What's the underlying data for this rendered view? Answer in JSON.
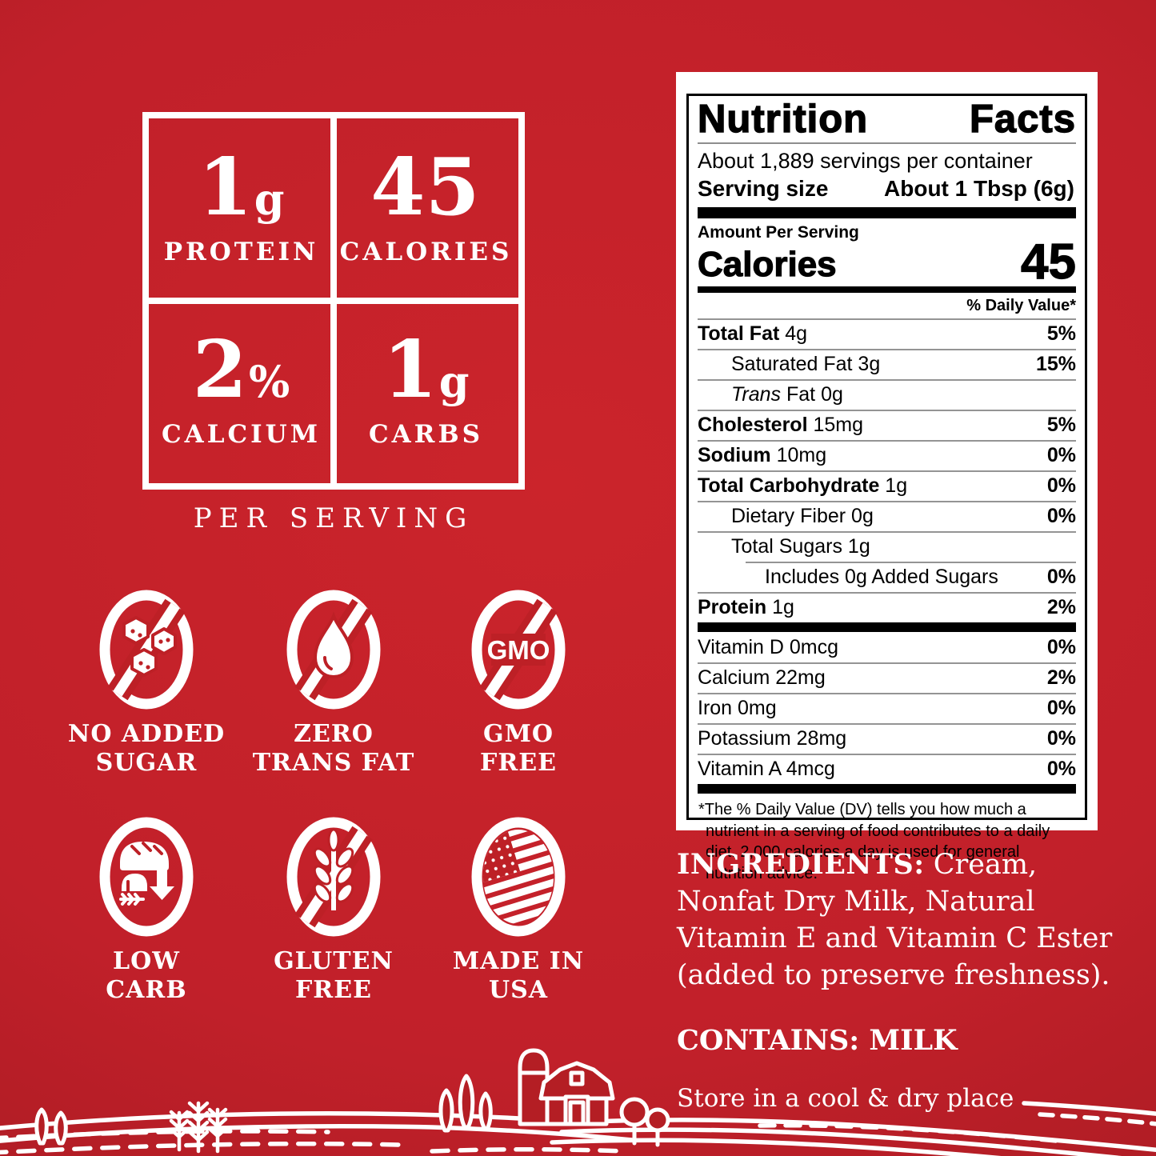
{
  "colors": {
    "background_red": "#c1202a",
    "deep_red": "#a21a20",
    "panel_white": "#ffffff",
    "text_black": "#000000",
    "art_white": "#ffffff"
  },
  "summary_grid": {
    "cells": [
      {
        "num": "1",
        "suffix": "g",
        "label": "PROTEIN"
      },
      {
        "num": "45",
        "suffix": "",
        "label": "CALORIES"
      },
      {
        "num": "2",
        "suffix": "%",
        "label": "CALCIUM"
      },
      {
        "num": "1",
        "suffix": "g",
        "label": "CARBS"
      }
    ],
    "caption": "PER SERVING"
  },
  "feature_badges": [
    {
      "icon": "no-added-sugar-icon",
      "label": "NO ADDED\nSUGAR"
    },
    {
      "icon": "zero-trans-fat-icon",
      "label": "ZERO\nTRANS FAT"
    },
    {
      "icon": "gmo-free-icon",
      "icon_text": "GMO",
      "label": "GMO\nFREE"
    },
    {
      "icon": "low-carb-icon",
      "label": "LOW\nCARB"
    },
    {
      "icon": "gluten-free-icon",
      "label": "GLUTEN\nFREE"
    },
    {
      "icon": "made-in-usa-icon",
      "label": "MADE IN\nUSA"
    }
  ],
  "nutrition_facts": {
    "title_word1": "Nutrition",
    "title_word2": "Facts",
    "servings_per_container": "About 1,889 servings per container",
    "serving_size_label": "Serving size",
    "serving_size_value": "About 1 Tbsp (6g)",
    "amount_per_serving": "Amount Per Serving",
    "calories_label": "Calories",
    "calories_value": "45",
    "daily_value_header": "% Daily Value*",
    "rows": [
      {
        "bold": "Total Fat",
        "rest": " 4g",
        "dv": "5%",
        "indent": 0,
        "divider": "full"
      },
      {
        "rest": "Saturated Fat 3g",
        "dv": "15%",
        "indent": 1,
        "divider": "full"
      },
      {
        "italic": "Trans",
        "rest": " Fat 0g",
        "dv": "",
        "indent": 1,
        "divider": "full"
      },
      {
        "bold": "Cholesterol",
        "rest": " 15mg",
        "dv": "5%",
        "indent": 0,
        "divider": "full"
      },
      {
        "bold": "Sodium",
        "rest": " 10mg",
        "dv": "0%",
        "indent": 0,
        "divider": "full"
      },
      {
        "bold": "Total Carbohydrate",
        "rest": " 1g",
        "dv": "0%",
        "indent": 0,
        "divider": "full"
      },
      {
        "rest": "Dietary Fiber 0g",
        "dv": "0%",
        "indent": 1,
        "divider": "full"
      },
      {
        "rest": "Total Sugars 1g",
        "dv": "",
        "indent": 1,
        "divider": "full"
      },
      {
        "rest": "Includes 0g Added Sugars",
        "dv": "0%",
        "indent": 2,
        "divider": "indent"
      },
      {
        "bold": "Protein",
        "rest": " 1g",
        "dv": "2%",
        "indent": 0,
        "divider": "full"
      }
    ],
    "vitamins": [
      {
        "text": "Vitamin D 0mcg",
        "dv": "0%"
      },
      {
        "text": "Calcium 22mg",
        "dv": "2%"
      },
      {
        "text": "Iron 0mg",
        "dv": "0%"
      },
      {
        "text": "Potassium 28mg",
        "dv": "0%"
      },
      {
        "text": "Vitamin A 4mcg",
        "dv": "0%"
      }
    ],
    "footnote": "*The % Daily Value (DV) tells you how much a nutrient in a serving of food contributes to a daily diet. 2,000 calories a day is used for general nutrition advice."
  },
  "ingredients": {
    "heading": "INGREDIENTS:",
    "text": " Cream, Nonfat Dry Milk, Natural Vitamin E and Vitamin C Ester (added to preserve freshness).",
    "contains": "CONTAINS: MILK",
    "storage": "Store in a cool & dry place"
  }
}
